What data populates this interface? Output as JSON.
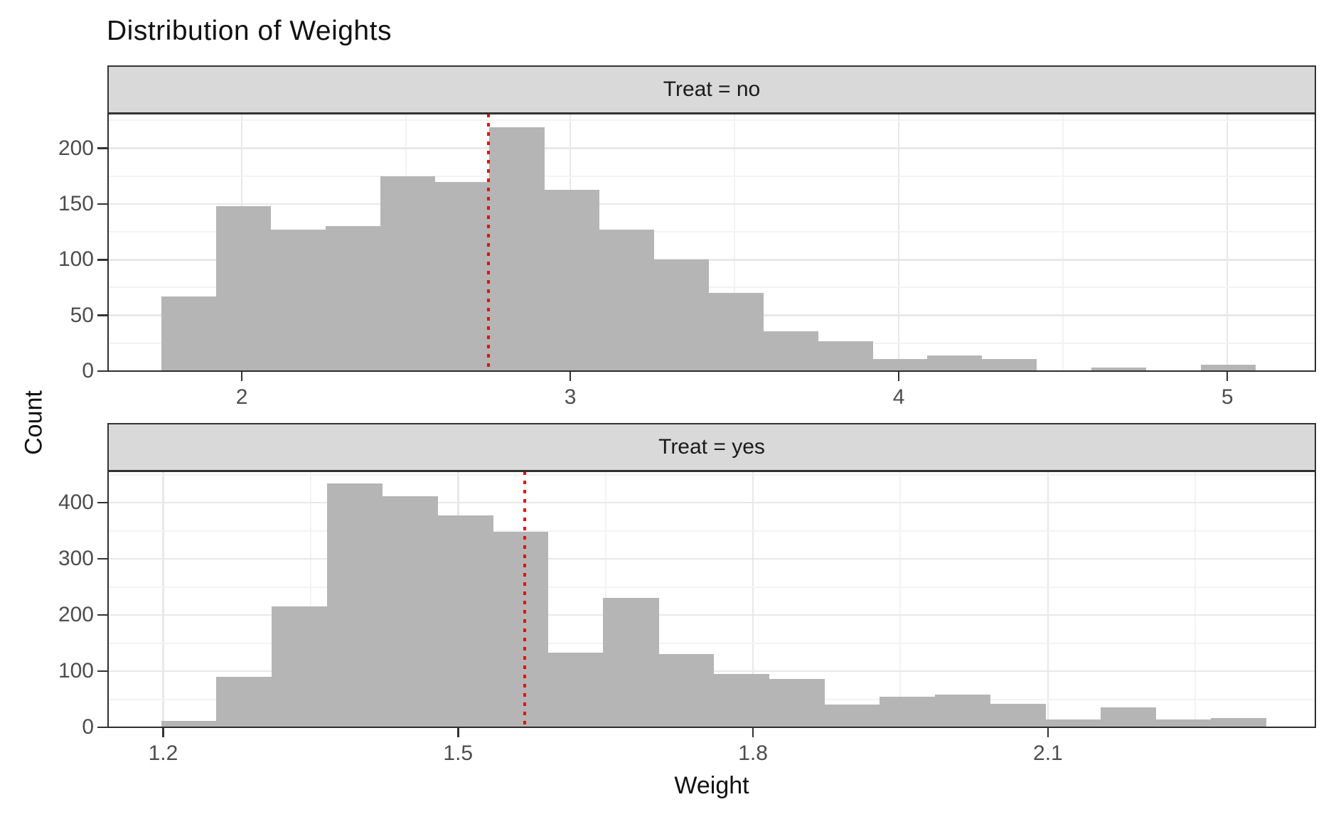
{
  "title": "Distribution of Weights",
  "x_axis_label": "Weight",
  "y_axis_label": "Count",
  "colors": {
    "bar_fill": "#b5b5b5",
    "strip_background": "#d9d9d9",
    "panel_border": "#2e2e2e",
    "grid_major": "#e8e8e8",
    "grid_minor": "#f3f3f3",
    "tick_text": "#4d4d4d",
    "mean_line": "#ff0000",
    "title_text": "#111111"
  },
  "chart_data": [
    {
      "type": "bar",
      "subtype": "histogram",
      "facet": "Treat = no",
      "bin_start": 1.755,
      "bin_width": 0.1665,
      "counts": [
        67,
        148,
        127,
        130,
        175,
        170,
        219,
        163,
        127,
        100,
        70,
        36,
        27,
        11,
        14,
        11,
        0,
        3,
        0,
        6
      ],
      "mean_line": 2.751,
      "x_tick_values": [
        2,
        3,
        4,
        5
      ],
      "x_tick_labels": [
        "2",
        "3",
        "4",
        "5"
      ],
      "y_tick_values": [
        0,
        50,
        100,
        150,
        200
      ],
      "y_tick_labels": [
        "0",
        "50",
        "100",
        "150",
        "200"
      ],
      "xlim": [
        1.593,
        5.268
      ],
      "ylim": [
        0,
        231
      ],
      "grid": "major+minor",
      "legend": "none"
    },
    {
      "type": "bar",
      "subtype": "histogram",
      "facet": "Treat = yes",
      "bin_start": 1.198,
      "bin_width": 0.0562,
      "counts": [
        12,
        90,
        215,
        435,
        412,
        378,
        348,
        133,
        230,
        130,
        95,
        86,
        41,
        55,
        58,
        42,
        14,
        36,
        14,
        16
      ],
      "mean_line": 1.568,
      "x_tick_values": [
        1.2,
        1.5,
        1.8,
        2.1
      ],
      "x_tick_labels": [
        "1.2",
        "1.5",
        "1.8",
        "2.1"
      ],
      "y_tick_values": [
        0,
        100,
        200,
        300,
        400
      ],
      "y_tick_labels": [
        "0",
        "100",
        "200",
        "300",
        "400"
      ],
      "xlim": [
        1.144,
        2.372
      ],
      "ylim": [
        0,
        456
      ],
      "grid": "major+minor",
      "legend": "none"
    }
  ]
}
